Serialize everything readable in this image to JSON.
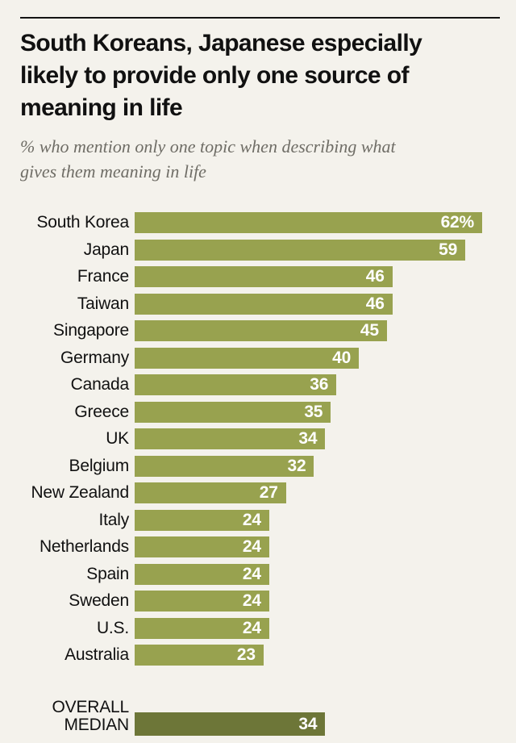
{
  "page": {
    "background_color": "#f4f2ec",
    "top_rule_color": "#141414"
  },
  "header": {
    "title": "South Koreans, Japanese especially\nlikely to provide only one source of\nmeaning in life",
    "subtitle": "% who mention only one topic when describing what\ngives them meaning in life"
  },
  "chart_data": {
    "type": "bar",
    "orientation": "horizontal",
    "title": "South Koreans, Japanese especially likely to provide only one source of meaning in life",
    "subtitle": "% who mention only one topic when describing what gives them meaning in life",
    "categories": [
      "South Korea",
      "Japan",
      "France",
      "Taiwan",
      "Singapore",
      "Germany",
      "Canada",
      "Greece",
      "UK",
      "Belgium",
      "New Zealand",
      "Italy",
      "Netherlands",
      "Spain",
      "Sweden",
      "U.S.",
      "Australia"
    ],
    "values": [
      62,
      59,
      46,
      46,
      45,
      40,
      36,
      35,
      34,
      32,
      27,
      24,
      24,
      24,
      24,
      24,
      23
    ],
    "value_labels": [
      "62%",
      "59",
      "46",
      "46",
      "45",
      "40",
      "36",
      "35",
      "34",
      "32",
      "27",
      "24",
      "24",
      "24",
      "24",
      "24",
      "23"
    ],
    "median": {
      "label": "OVERALL\nMEDIAN",
      "value": 34,
      "value_label": "34"
    },
    "axis_max": 62,
    "xlim": [
      0,
      62
    ],
    "grid": false,
    "legend": false,
    "bar_color": "#98a24f",
    "median_bar_color": "#6d7638",
    "value_label_color": "#ffffff"
  }
}
